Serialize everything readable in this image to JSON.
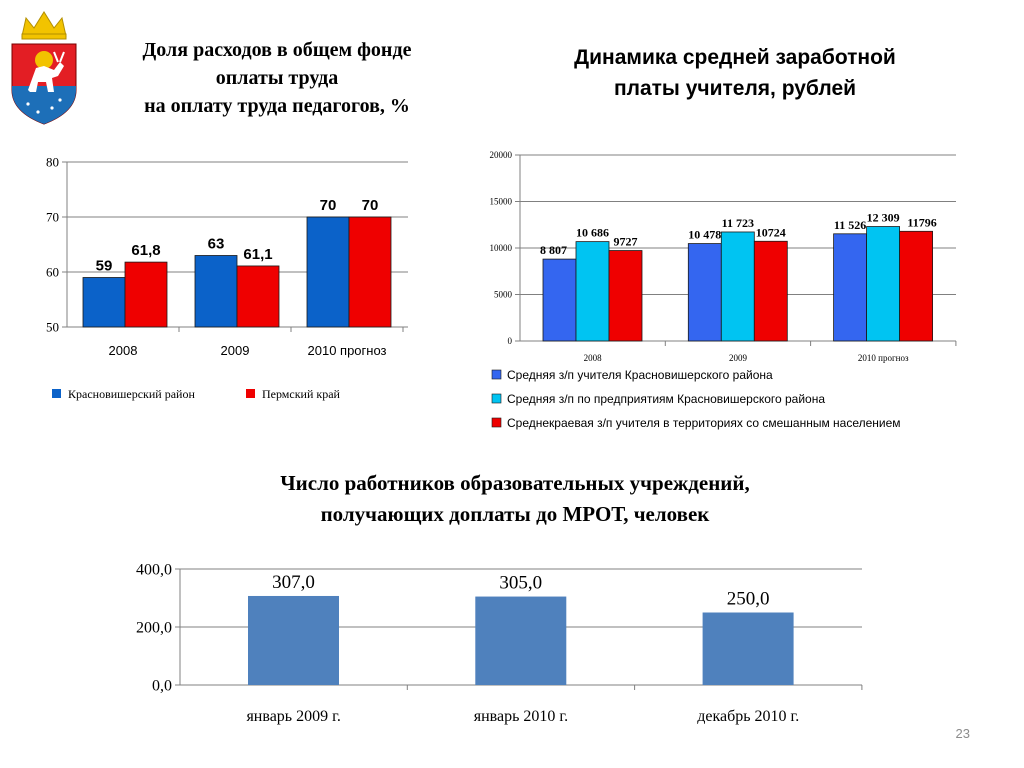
{
  "colors": {
    "blue": "#0b62c9",
    "red": "#ef0000",
    "mid_blue": "#3466f0",
    "cyan": "#00c4f2",
    "steel": "#4f81bd",
    "axis": "#808080",
    "page_number": "#8c8c8c"
  },
  "emblem": {
    "icon": "coat-of-arms-icon",
    "field_color": "#e31e24",
    "lower_color": "#1d6fb8",
    "crown_color": "#f2c300"
  },
  "page_number": "23",
  "chart_data": [
    {
      "type": "bar",
      "title_lines": [
        "Доля расходов в общем фонде",
        "оплаты труда",
        "на оплату труда педагогов, %"
      ],
      "categories": [
        "2008",
        "2009",
        "2010 прогноз"
      ],
      "series": [
        {
          "name": "Красновишерский район",
          "values": [
            59,
            63,
            70
          ],
          "labels": [
            "59",
            "63",
            "70"
          ],
          "color": "#0b62c9"
        },
        {
          "name": "Пермский край",
          "values": [
            61.8,
            61.1,
            70
          ],
          "labels": [
            "61,8",
            "61,1",
            "70"
          ],
          "color": "#ef0000"
        }
      ],
      "ylim": [
        50,
        80
      ],
      "yticks": [
        50,
        60,
        70,
        80
      ],
      "ytick_labels": [
        "50",
        "60",
        "70",
        "80"
      ],
      "grid": true,
      "legend": "bottom"
    },
    {
      "type": "bar",
      "title_lines": [
        "Динамика средней заработной",
        "платы учителя, рублей"
      ],
      "categories": [
        "2008",
        "2009",
        "2010 прогноз"
      ],
      "series": [
        {
          "name": "Средняя з/п учителя Красновишерского района",
          "values": [
            8807,
            10478,
            11526
          ],
          "labels": [
            "8 807",
            "10 478",
            "11 526"
          ],
          "color": "#3466f0"
        },
        {
          "name": "Средняя з/п по предприятиям Красновишерского района",
          "values": [
            10686,
            11723,
            12309
          ],
          "labels": [
            "10 686",
            "11 723",
            "12 309"
          ],
          "color": "#00c4f2"
        },
        {
          "name": "Среднекраевая з/п учителя в территориях со смешанным населением",
          "values": [
            9727,
            10724,
            11796
          ],
          "labels": [
            "9727",
            "10724",
            "11796"
          ],
          "color": "#ef0000"
        }
      ],
      "ylim": [
        0,
        20000
      ],
      "yticks": [
        0,
        5000,
        10000,
        15000,
        20000
      ],
      "ytick_labels": [
        "0",
        "5000",
        "10000",
        "15000",
        "20000"
      ],
      "grid": true,
      "legend": "bottom"
    },
    {
      "type": "bar",
      "title_lines": [
        "Число работников образовательных учреждений,",
        "получающих доплаты до МРОТ, человек"
      ],
      "categories": [
        "январь 2009 г.",
        "январь 2010 г.",
        "декабрь 2010 г."
      ],
      "series": [
        {
          "values": [
            307,
            305,
            250
          ],
          "labels": [
            "307,0",
            "305,0",
            "250,0"
          ],
          "color": "#4f81bd"
        }
      ],
      "ylim": [
        0,
        400
      ],
      "yticks": [
        0,
        200,
        400
      ],
      "ytick_labels": [
        "0,0",
        "200,0",
        "400,0"
      ],
      "grid": true,
      "legend": "none"
    }
  ]
}
